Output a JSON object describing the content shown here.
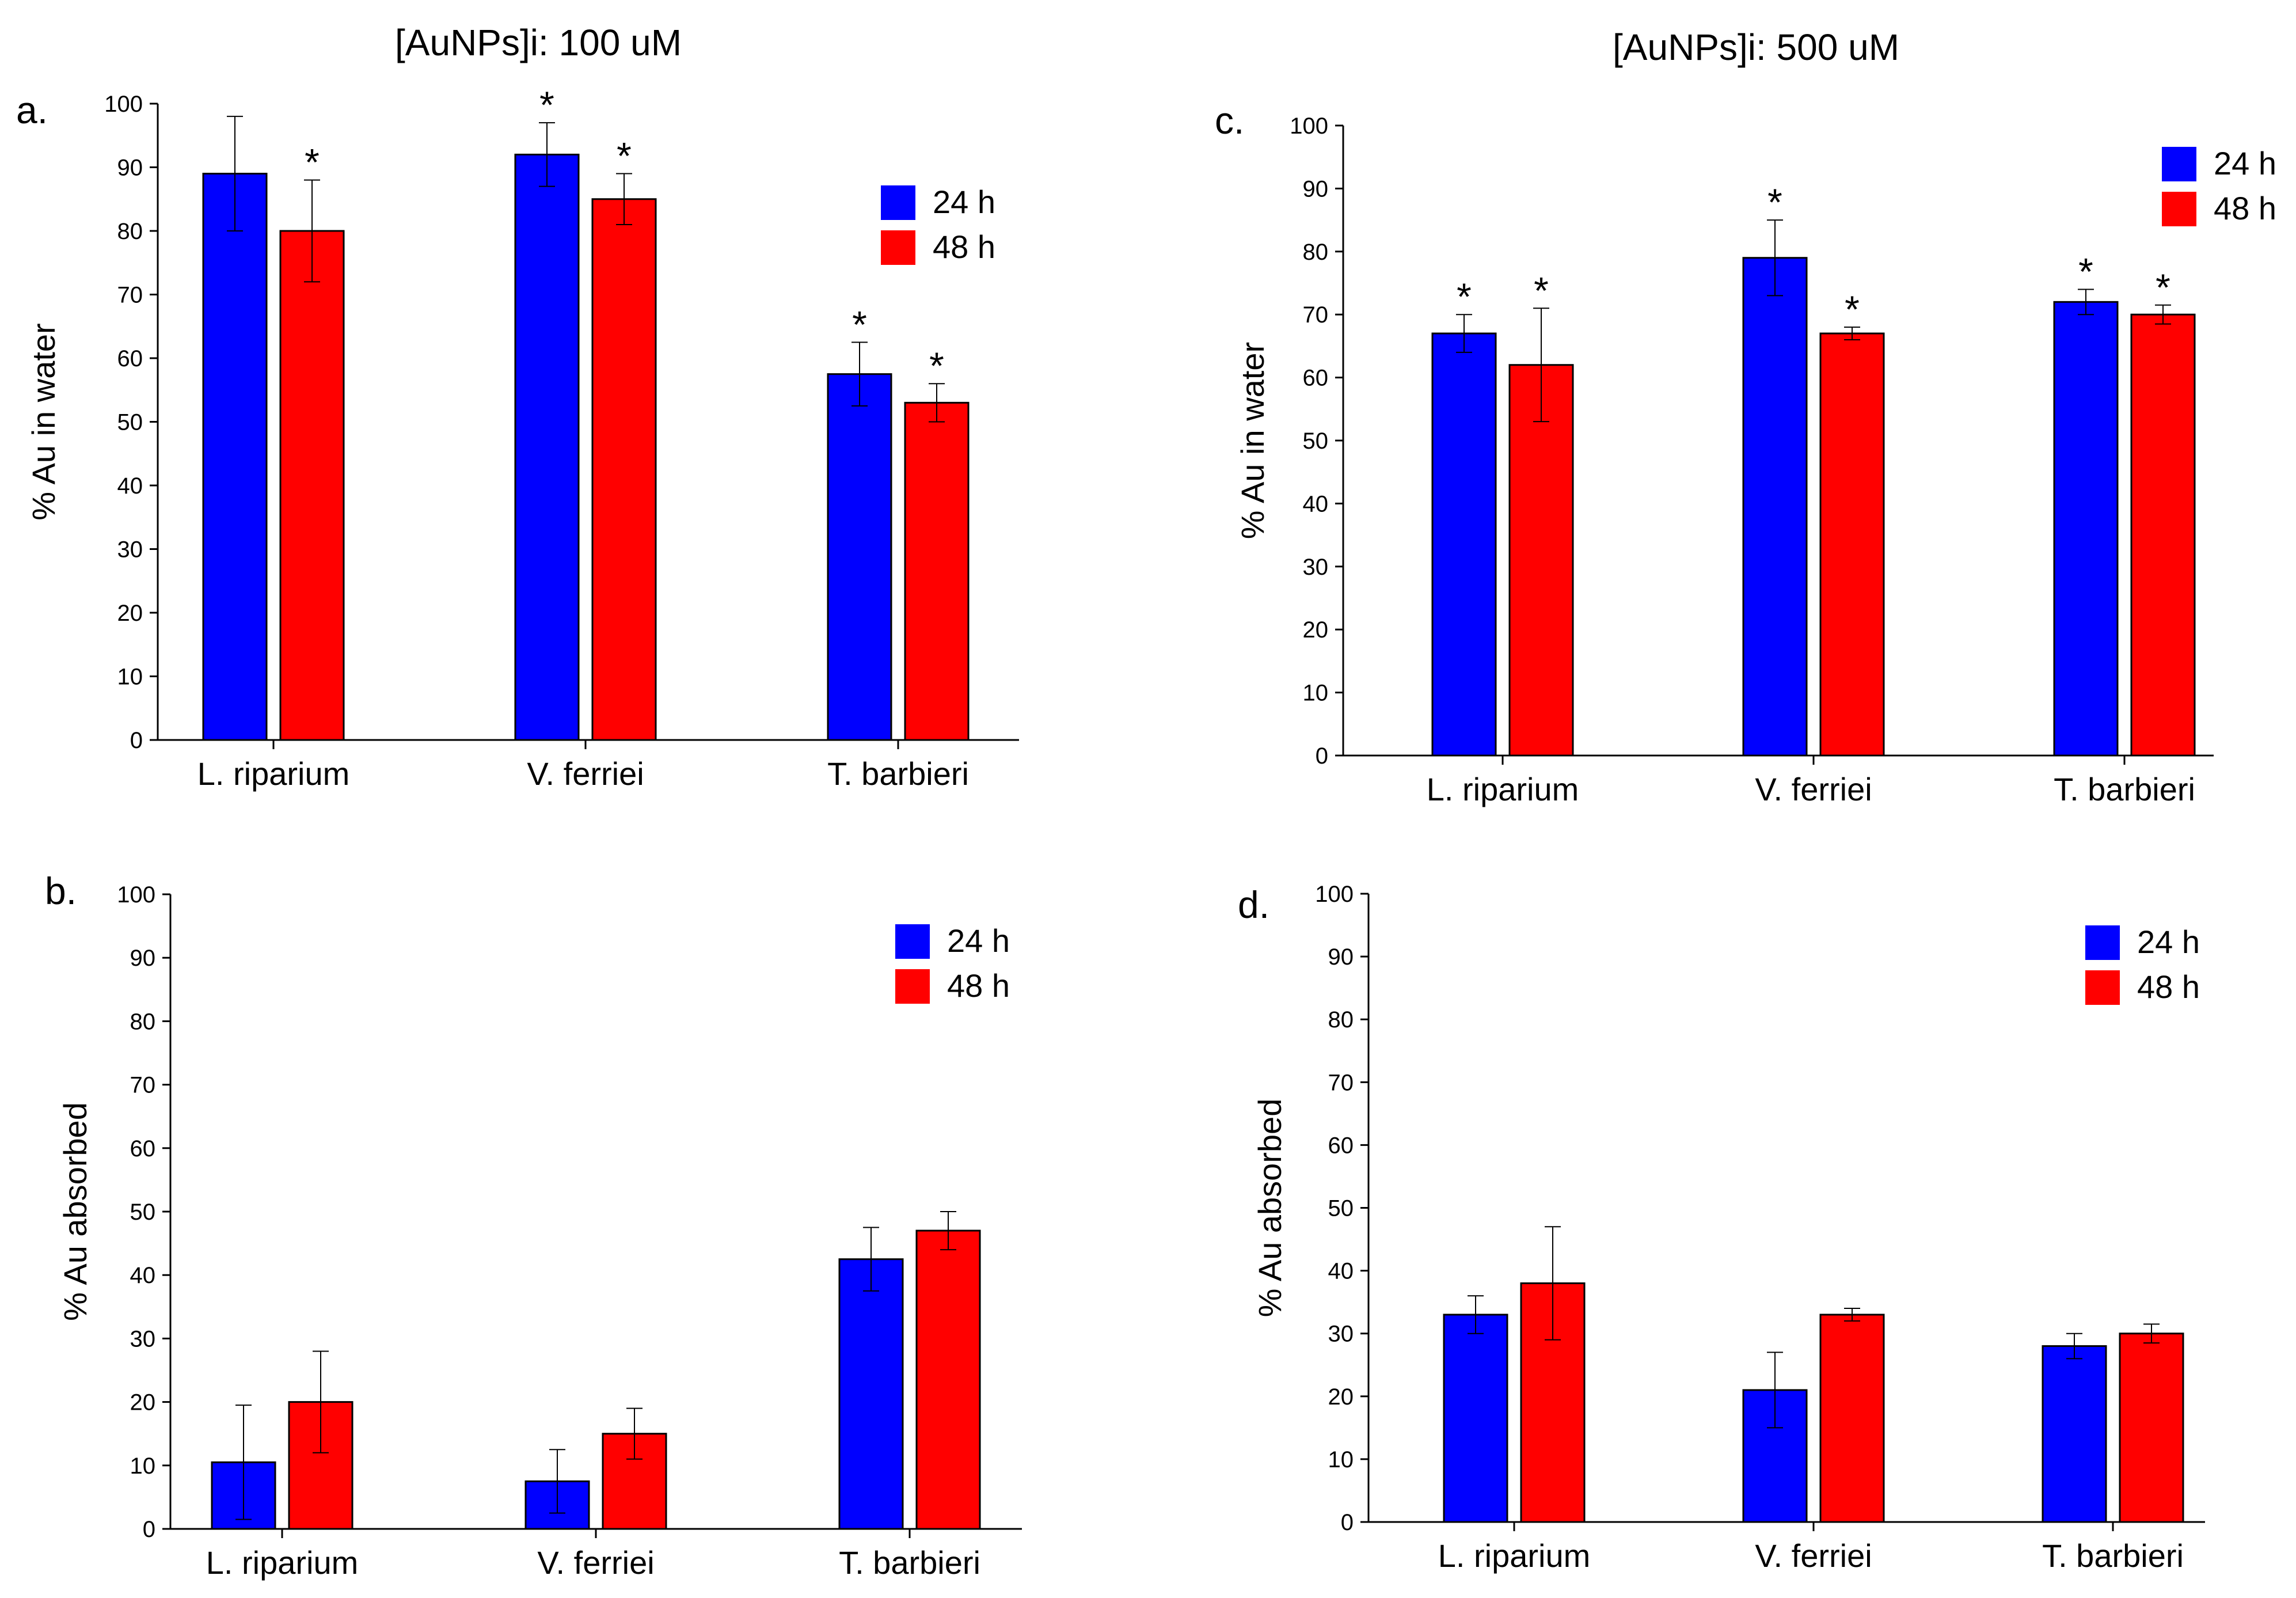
{
  "column_titles": [
    "[AuNPs]i: 100 uM",
    "[AuNPs]i: 500 uM"
  ],
  "colors": {
    "series_24h": "#0000FF",
    "series_48h": "#FF0000",
    "axis": "#000000"
  },
  "chart_data": [
    {
      "panel": "a.",
      "type": "bar",
      "ylabel": "% Au in water",
      "ylim": [
        0,
        100
      ],
      "yticks": [
        0,
        10,
        20,
        30,
        40,
        50,
        60,
        70,
        80,
        90,
        100
      ],
      "categories": [
        "L. riparium",
        "V. ferriei",
        "T. barbieri"
      ],
      "legend_position": "top-right",
      "series": [
        {
          "name": "24 h",
          "values": [
            89,
            92,
            57.5
          ],
          "errors": [
            9,
            5,
            5
          ],
          "significant": [
            false,
            true,
            true
          ]
        },
        {
          "name": "48 h",
          "values": [
            80,
            85,
            53
          ],
          "errors": [
            8,
            4,
            3
          ],
          "significant": [
            true,
            true,
            true
          ]
        }
      ]
    },
    {
      "panel": "b.",
      "type": "bar",
      "ylabel": "% Au absorbed",
      "ylim": [
        0,
        100
      ],
      "yticks": [
        0,
        10,
        20,
        30,
        40,
        50,
        60,
        70,
        80,
        90,
        100
      ],
      "categories": [
        "L. riparium",
        "V. ferriei",
        "T. barbieri"
      ],
      "legend_position": "top-right",
      "series": [
        {
          "name": "24 h",
          "values": [
            10.5,
            7.5,
            42.5
          ],
          "errors": [
            9,
            5,
            5
          ],
          "significant": [
            false,
            false,
            false
          ]
        },
        {
          "name": "48 h",
          "values": [
            20,
            15,
            47
          ],
          "errors": [
            8,
            4,
            3
          ],
          "significant": [
            false,
            false,
            false
          ]
        }
      ]
    },
    {
      "panel": "c.",
      "type": "bar",
      "ylabel": "% Au in water",
      "ylim": [
        0,
        100
      ],
      "yticks": [
        0,
        10,
        20,
        30,
        40,
        50,
        60,
        70,
        80,
        90,
        100
      ],
      "categories": [
        "L. riparium",
        "V. ferriei",
        "T. barbieri"
      ],
      "legend_position": "top-right",
      "series": [
        {
          "name": "24 h",
          "values": [
            67,
            79,
            72
          ],
          "errors": [
            3,
            6,
            2
          ],
          "significant": [
            true,
            true,
            true
          ]
        },
        {
          "name": "48 h",
          "values": [
            62,
            67,
            70
          ],
          "errors": [
            9,
            1,
            1.5
          ],
          "significant": [
            true,
            true,
            true
          ]
        }
      ]
    },
    {
      "panel": "d.",
      "type": "bar",
      "ylabel": "% Au absorbed",
      "ylim": [
        0,
        100
      ],
      "yticks": [
        0,
        10,
        20,
        30,
        40,
        50,
        60,
        70,
        80,
        90,
        100
      ],
      "categories": [
        "L. riparium",
        "V. ferriei",
        "T. barbieri"
      ],
      "legend_position": "top-right",
      "series": [
        {
          "name": "24 h",
          "values": [
            33,
            21,
            28
          ],
          "errors": [
            3,
            6,
            2
          ],
          "significant": [
            false,
            false,
            false
          ]
        },
        {
          "name": "48 h",
          "values": [
            38,
            33,
            30
          ],
          "errors": [
            9,
            1,
            1.5
          ],
          "significant": [
            false,
            false,
            false
          ]
        }
      ]
    }
  ]
}
